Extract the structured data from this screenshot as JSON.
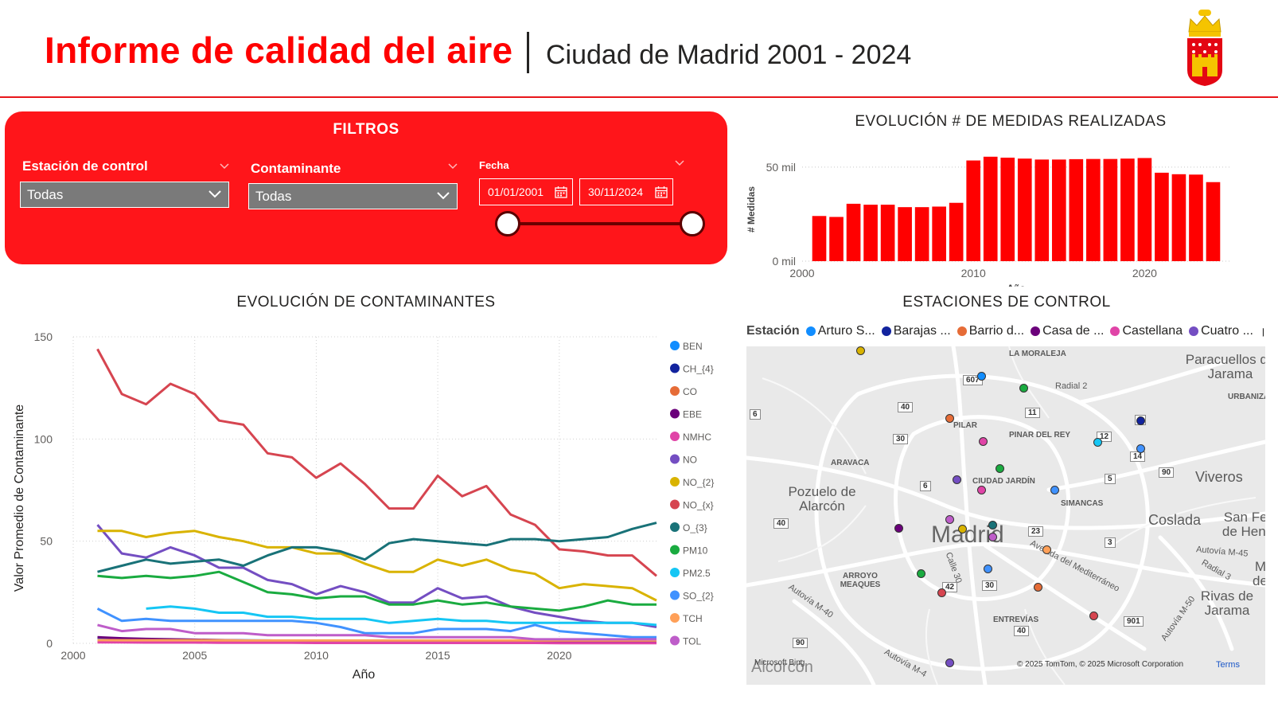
{
  "header": {
    "title": "Informe de calidad del aire",
    "subtitle": "Ciudad de Madrid 2001 - 2024",
    "logo_icon": "madrid-community-coat-of-arms"
  },
  "colors": {
    "brand_red": "#ff0000",
    "panel_red": "#ff151a",
    "bar_red": "#ff0000"
  },
  "filters": {
    "title": "FILTROS",
    "station": {
      "label": "Estación de control",
      "value": "Todas"
    },
    "pollutant": {
      "label": "Contaminante",
      "value": "Todas"
    },
    "date": {
      "label": "Fecha",
      "from": "01/01/2001",
      "to": "30/11/2024",
      "slider_start": 0,
      "slider_end": 1
    }
  },
  "measures_chart": {
    "title": "EVOLUCIÓN # DE MEDIDAS REALIZADAS",
    "chart_data": {
      "type": "bar",
      "title": "EVOLUCIÓN # DE MEDIDAS REALIZADAS",
      "xlabel": "Año",
      "ylabel": "# Medidas",
      "y_ticks": [
        "0 mil",
        "50 mil"
      ],
      "x_ticks": [
        "2000",
        "2010",
        "2020"
      ],
      "ylim": [
        0,
        55000
      ],
      "categories": [
        2001,
        2002,
        2003,
        2004,
        2005,
        2006,
        2007,
        2008,
        2009,
        2010,
        2011,
        2012,
        2013,
        2014,
        2015,
        2016,
        2017,
        2018,
        2019,
        2020,
        2021,
        2022,
        2023,
        2024
      ],
      "values": [
        24000,
        23500,
        30500,
        30000,
        30000,
        28700,
        28700,
        29000,
        31000,
        53500,
        55500,
        55000,
        54500,
        54000,
        54000,
        54200,
        54300,
        54300,
        54500,
        54800,
        47000,
        46200,
        46000,
        42000
      ],
      "grid": true
    }
  },
  "pollutants_chart": {
    "title": "EVOLUCIÓN DE CONTAMINANTES",
    "chart_data": {
      "type": "line",
      "title": "EVOLUCIÓN DE CONTAMINANTES",
      "xlabel": "Año",
      "ylabel": "Valor Promedio de Contaminante",
      "xlim": [
        2000,
        2024
      ],
      "ylim": [
        0,
        150
      ],
      "x_ticks": [
        2000,
        2005,
        2010,
        2015,
        2020
      ],
      "y_ticks": [
        0,
        50,
        100,
        150
      ],
      "legend_placement": "right",
      "grid": true,
      "x": [
        2001,
        2002,
        2003,
        2004,
        2005,
        2006,
        2007,
        2008,
        2009,
        2010,
        2011,
        2012,
        2013,
        2014,
        2015,
        2016,
        2017,
        2018,
        2019,
        2020,
        2021,
        2022,
        2023,
        2024
      ],
      "series": [
        {
          "name": "BEN",
          "color": "#118dff",
          "values": [
            2.5,
            2.2,
            2.0,
            1.9,
            1.7,
            1.6,
            1.5,
            1.4,
            1.2,
            1.1,
            1.0,
            1.0,
            0.9,
            0.9,
            0.8,
            0.8,
            0.8,
            0.7,
            0.7,
            0.6,
            0.6,
            0.6,
            0.6,
            0.6
          ]
        },
        {
          "name": "CH_{4}",
          "color": "#12239e",
          "values": [
            1.5,
            1.4,
            1.4,
            1.4,
            1.3,
            1.3,
            1.3,
            1.3,
            1.3,
            1.3,
            1.3,
            1.3,
            1.3,
            1.3,
            1.3,
            1.3,
            1.3,
            1.3,
            1.3,
            1.3,
            1.3,
            1.3,
            1.3,
            1.3
          ]
        },
        {
          "name": "CO",
          "color": "#e66c37",
          "values": [
            1.2,
            1.1,
            1.0,
            0.9,
            0.8,
            0.7,
            0.6,
            0.6,
            0.5,
            0.5,
            0.4,
            0.4,
            0.4,
            0.4,
            0.4,
            0.4,
            0.4,
            0.3,
            0.3,
            0.3,
            0.3,
            0.3,
            0.3,
            0.3
          ]
        },
        {
          "name": "EBE",
          "color": "#6b007b",
          "values": [
            3.0,
            2.5,
            2.2,
            2.0,
            1.8,
            1.6,
            1.4,
            1.3,
            1.1,
            1.0,
            0.9,
            0.9,
            0.8,
            0.7,
            0.7,
            0.7,
            0.6,
            0.6,
            0.6,
            0.5,
            0.5,
            0.5,
            0.5,
            0.5
          ]
        },
        {
          "name": "NMHC",
          "color": "#e044a7",
          "values": [
            0.5,
            0.5,
            0.4,
            0.4,
            0.4,
            0.3,
            0.3,
            0.3,
            0.3,
            0.2,
            0.2,
            0.2,
            0.2,
            0.2,
            0.2,
            0.2,
            0.2,
            0.2,
            0.2,
            0.1,
            0.1,
            0.1,
            0.1,
            0.1
          ]
        },
        {
          "name": "NO",
          "color": "#744ec2",
          "values": [
            58,
            44,
            42,
            47,
            43,
            37,
            37,
            31,
            29,
            24,
            28,
            25,
            20,
            20,
            27,
            22,
            23,
            18,
            15,
            13,
            11,
            10,
            10,
            8
          ]
        },
        {
          "name": "NO_{2}",
          "color": "#d9b300",
          "values": [
            55,
            55,
            52,
            54,
            55,
            52,
            50,
            47,
            47,
            44,
            44,
            39,
            35,
            35,
            41,
            38,
            41,
            36,
            34,
            27,
            29,
            28,
            27,
            21
          ]
        },
        {
          "name": "NO_{x}",
          "color": "#d64550",
          "values": [
            144,
            122,
            117,
            127,
            122,
            109,
            107,
            93,
            91,
            81,
            88,
            78,
            66,
            66,
            82,
            72,
            77,
            63,
            58,
            46,
            45,
            43,
            43,
            33
          ]
        },
        {
          "name": "O_{3}",
          "color": "#197278",
          "values": [
            35,
            38,
            41,
            39,
            40,
            41,
            38,
            43,
            47,
            47,
            45,
            41,
            49,
            51,
            50,
            49,
            48,
            51,
            51,
            50,
            51,
            52,
            56,
            59
          ]
        },
        {
          "name": "PM10",
          "color": "#1aab40",
          "values": [
            33,
            32,
            33,
            32,
            33,
            35,
            30,
            25,
            24,
            22,
            23,
            23,
            19,
            19,
            21,
            19,
            20,
            18,
            17,
            16,
            18,
            21,
            19,
            19
          ]
        },
        {
          "name": "PM2.5",
          "color": "#15c6f4",
          "values": [
            null,
            null,
            17,
            18,
            17,
            15,
            15,
            13,
            13,
            12,
            12,
            12,
            10,
            11,
            12,
            11,
            11,
            10,
            10,
            10,
            10,
            10,
            10,
            9
          ]
        },
        {
          "name": "SO_{2}",
          "color": "#4092ff",
          "values": [
            17,
            11,
            12,
            11,
            11,
            11,
            11,
            11,
            11,
            10,
            8,
            5,
            5,
            5,
            7,
            7,
            7,
            6,
            9,
            6,
            5,
            4,
            3,
            3
          ]
        },
        {
          "name": "TCH",
          "color": "#ffa058",
          "values": [
            1.6,
            1.5,
            1.5,
            1.5,
            1.5,
            1.5,
            1.4,
            1.4,
            1.4,
            1.4,
            1.4,
            1.4,
            1.4,
            1.4,
            1.4,
            1.4,
            1.4,
            1.4,
            1.4,
            1.4,
            1.4,
            1.4,
            1.4,
            1.4
          ]
        },
        {
          "name": "TOL",
          "color": "#be5dc9",
          "values": [
            9,
            6,
            7,
            7,
            5,
            5,
            5,
            4,
            4,
            4,
            4,
            4,
            3,
            3,
            3,
            3,
            3,
            3,
            2,
            2,
            2,
            2,
            2,
            2
          ]
        }
      ]
    }
  },
  "stations_map": {
    "title": "ESTACIONES DE CONTROL",
    "legend_title": "Estación",
    "legend_items": [
      {
        "name": "Arturo S...",
        "color": "#118dff"
      },
      {
        "name": "Barajas ...",
        "color": "#12239e"
      },
      {
        "name": "Barrio d...",
        "color": "#e66c37"
      },
      {
        "name": "Casa de ...",
        "color": "#6b007b"
      },
      {
        "name": "Castellana",
        "color": "#e044a7"
      },
      {
        "name": "Cuatro ...",
        "color": "#744ec2"
      }
    ],
    "legend_more_icon": "triangle-right-icon",
    "place_labels": {
      "moraleja": "LA MORALEJA",
      "paracuellos": "Paracuellos de Jarama",
      "urbanizacion": "URBANIZAC",
      "radial2": "Radial 2",
      "pilar": "PILAR",
      "pinar": "PINAR DEL REY",
      "aravaca": "ARAVACA",
      "ciudad_jardin": "CIUDAD JARDÍN",
      "simancas": "SIMANCAS",
      "viveros": "Viveros",
      "pozuelo": "Pozuelo de Alarcón",
      "coslada": "Coslada",
      "san_fer": "San Fer de Hena",
      "madrid": "Madrid",
      "autovia_m45": "Autovía M-45",
      "radial3": "Radial 3",
      "m_del": "M del",
      "arroyo": "ARROYO MEAQUES",
      "rivas": "Rivas de Jarama",
      "mediterraneo": "Avenida del Mediterráneo",
      "calle30": "Calle 30",
      "autovia_m40": "Autovía M-40",
      "entrevias": "ENTREVÍAS",
      "autovia_m50": "Autovía M-50",
      "autovia_m4": "Autovía M-4",
      "alcorcon": "Alcorcón",
      "bing": "Microsoft Bing",
      "copyright": "© 2025 TomTom, © 2025 Microsoft Corporation",
      "terms": "Terms"
    },
    "road_badges": [
      "607",
      "40",
      "11",
      "6",
      "30",
      "12",
      "3",
      "14",
      "6",
      "5",
      "90",
      "40",
      "23",
      "3",
      "42",
      "30",
      "40",
      "901",
      "90"
    ]
  }
}
